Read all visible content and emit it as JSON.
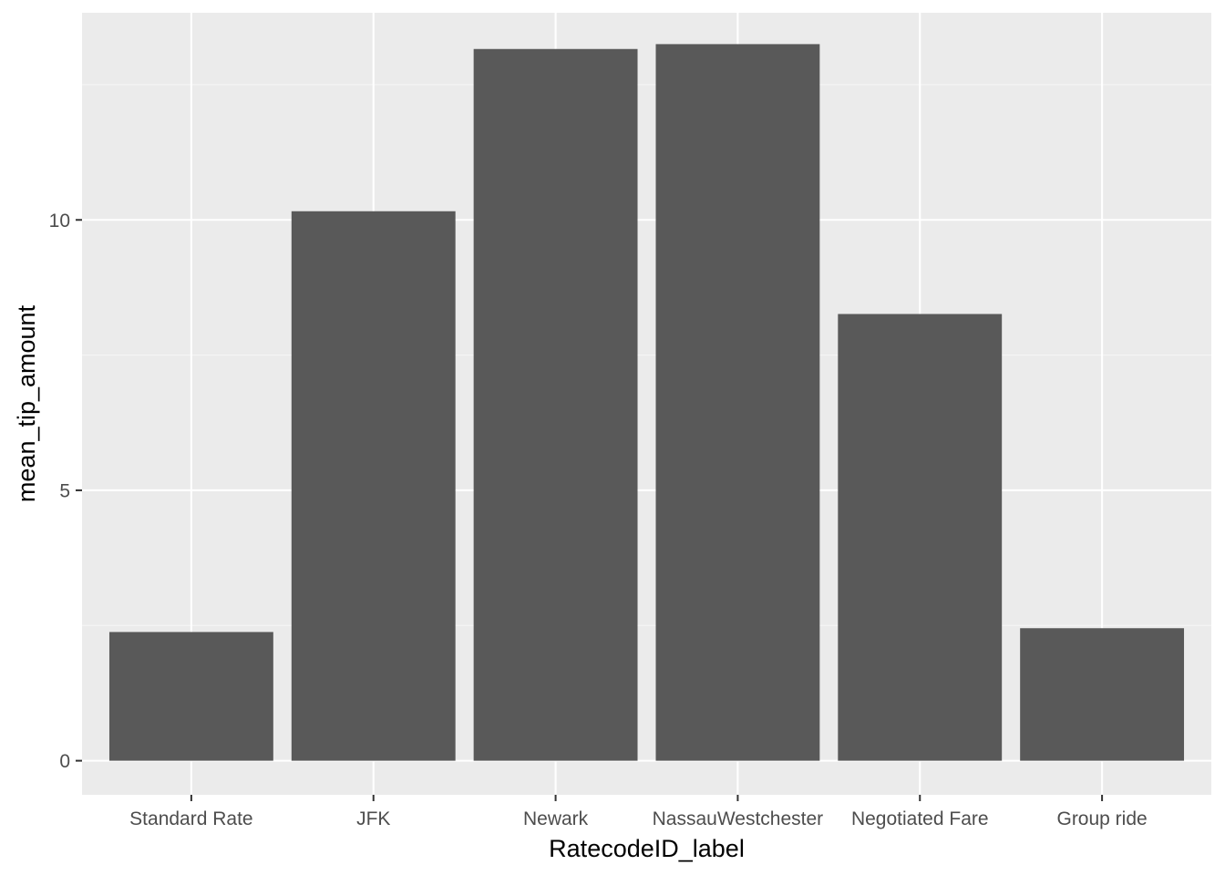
{
  "chart_data": {
    "type": "bar",
    "title": "",
    "xlabel": "RatecodeID_label",
    "ylabel": "mean_tip_amount",
    "categories": [
      "Standard Rate",
      "JFK",
      "Newark",
      "NassauWestchester",
      "Negotiated Fare",
      "Group ride"
    ],
    "values": [
      2.38,
      10.16,
      13.16,
      13.25,
      8.26,
      2.45
    ],
    "ylim": [
      -0.63,
      13.83
    ],
    "yticks": [
      0,
      5,
      10
    ],
    "ytick_labels": [
      "0",
      "5",
      "10"
    ],
    "grid": true,
    "legend": "none",
    "colors": {
      "panel_background": "#ebebeb",
      "grid_major": "#ffffff",
      "grid_minor": "#f5f5f5",
      "bar_fill": "#595959",
      "tick_text": "#4d4d4d",
      "tick_mark": "#333333",
      "axis_title": "#000000"
    }
  }
}
